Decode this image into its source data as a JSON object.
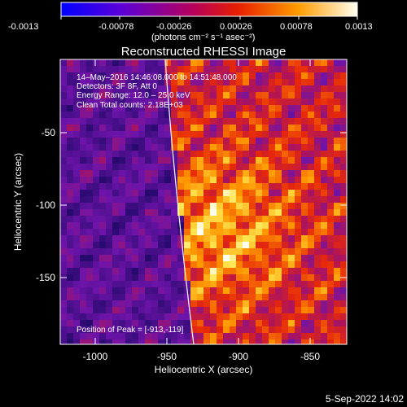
{
  "colorbar": {
    "ticks": [
      "-0.0013",
      "-0.00078",
      "-0.00026",
      "0.00026",
      "0.00078",
      "0.0013"
    ],
    "unit_label": "(photons cm⁻² s⁻¹ asec⁻²)"
  },
  "title": "Reconstructed RHESSI Image",
  "info": {
    "line1": "14–May–2016 14:46:08.000 to 14:51:48.000",
    "line2": "Detectors: 3F 8F, Att 0",
    "line3": "Energy Range: 12.0 – 25.0 keV",
    "line4": "Clean    Total counts: 2.18E+03",
    "peak": "Position of Peak = [-913,-119]"
  },
  "axes": {
    "xlabel": "Heliocentric X (arcsec)",
    "ylabel": "Heliocentric Y (arcsec)",
    "xticks": [
      "-1000",
      "-950",
      "-900",
      "-850"
    ],
    "yticks": [
      "-50",
      "-100",
      "-150"
    ]
  },
  "footer_date": "5-Sep-2022 14:02",
  "colors": {
    "background": "#000000",
    "text": "#ffffff"
  }
}
